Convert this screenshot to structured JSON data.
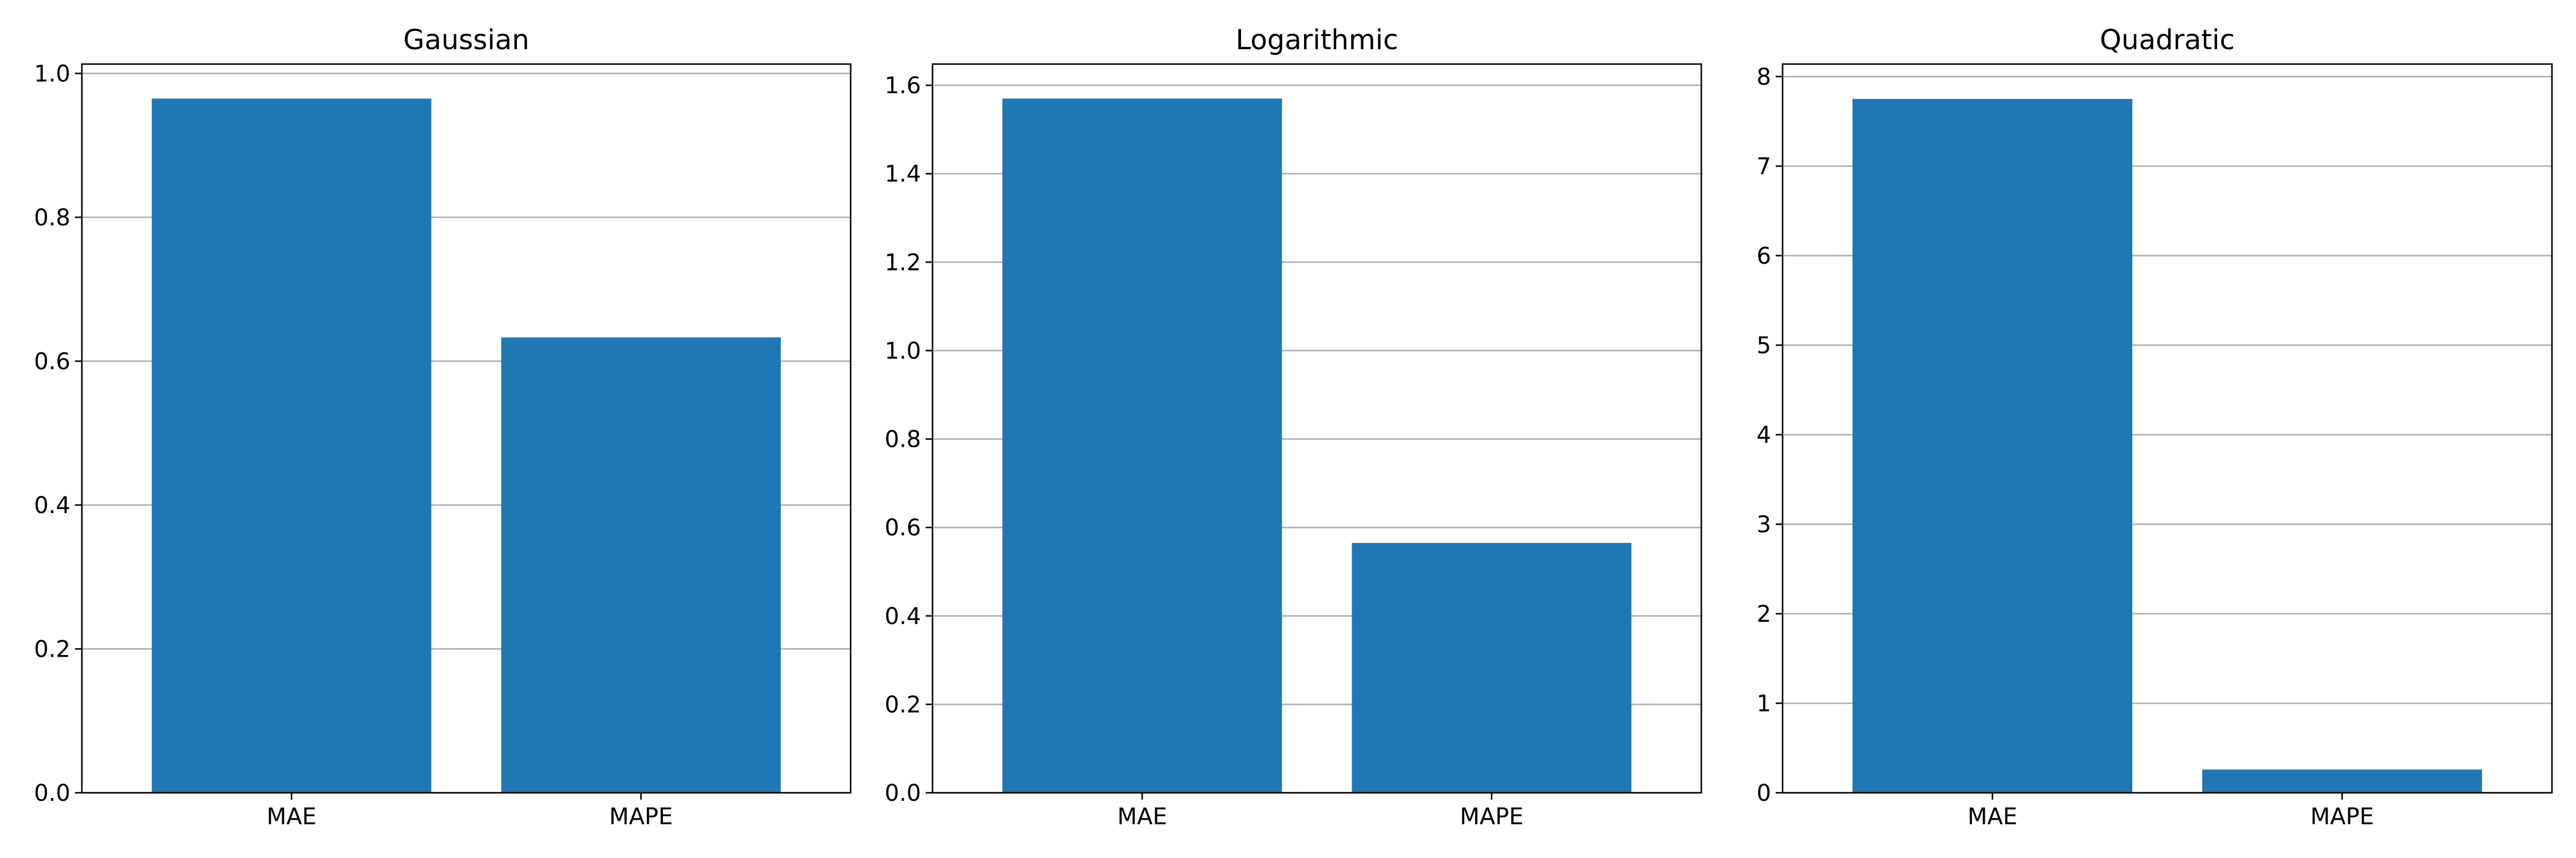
{
  "chart_data": [
    {
      "type": "bar",
      "title": "Gaussian",
      "xlabel": "",
      "ylabel": "",
      "categories": [
        "MAE",
        "MAPE"
      ],
      "values": [
        0.965,
        0.633
      ],
      "ylim": [
        0,
        1.013
      ],
      "yticks": [
        0.0,
        0.2,
        0.4,
        0.6,
        0.8,
        1.0
      ],
      "ytick_labels": [
        "0.0",
        "0.2",
        "0.4",
        "0.6",
        "0.8",
        "1.0"
      ],
      "grid": "y",
      "bar_color": "#1f77b4"
    },
    {
      "type": "bar",
      "title": "Logarithmic",
      "xlabel": "",
      "ylabel": "",
      "categories": [
        "MAE",
        "MAPE"
      ],
      "values": [
        1.57,
        0.565
      ],
      "ylim": [
        0,
        1.648
      ],
      "yticks": [
        0.0,
        0.2,
        0.4,
        0.6,
        0.8,
        1.0,
        1.2,
        1.4,
        1.6
      ],
      "ytick_labels": [
        "0.0",
        "0.2",
        "0.4",
        "0.6",
        "0.8",
        "1.0",
        "1.2",
        "1.4",
        "1.6"
      ],
      "grid": "y",
      "bar_color": "#1f77b4"
    },
    {
      "type": "bar",
      "title": "Quadratic",
      "xlabel": "",
      "ylabel": "",
      "categories": [
        "MAE",
        "MAPE"
      ],
      "values": [
        7.75,
        0.26
      ],
      "ylim": [
        0,
        8.14
      ],
      "yticks": [
        0,
        1,
        2,
        3,
        4,
        5,
        6,
        7,
        8
      ],
      "ytick_labels": [
        "0",
        "1",
        "2",
        "3",
        "4",
        "5",
        "6",
        "7",
        "8"
      ],
      "grid": "y",
      "bar_color": "#1f77b4"
    }
  ]
}
